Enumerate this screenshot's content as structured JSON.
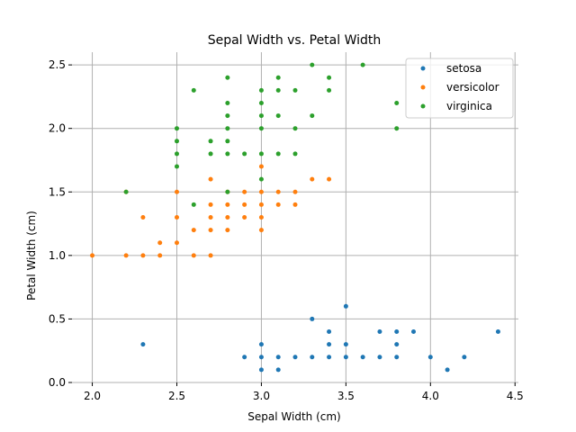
{
  "chart_data": {
    "type": "scatter",
    "title": "Sepal Width vs. Petal Width",
    "xlabel": "Sepal Width (cm)",
    "ylabel": "Petal Width (cm)",
    "xlim": [
      1.88,
      4.52
    ],
    "ylim": [
      0.0,
      2.6
    ],
    "xticks": [
      "2.0",
      "2.5",
      "3.0",
      "3.5",
      "4.0",
      "4.5"
    ],
    "yticks": [
      "0.0",
      "0.5",
      "1.0",
      "1.5",
      "2.0",
      "2.5"
    ],
    "grid": true,
    "legend_position": "top-right",
    "series": [
      {
        "name": "setosa",
        "color": "#1f77b4",
        "points": [
          [
            2.3,
            0.3
          ],
          [
            2.9,
            0.2
          ],
          [
            3.0,
            0.1
          ],
          [
            3.0,
            0.2
          ],
          [
            3.0,
            0.3
          ],
          [
            3.1,
            0.1
          ],
          [
            3.1,
            0.2
          ],
          [
            3.2,
            0.2
          ],
          [
            3.3,
            0.2
          ],
          [
            3.3,
            0.5
          ],
          [
            3.4,
            0.2
          ],
          [
            3.4,
            0.3
          ],
          [
            3.4,
            0.4
          ],
          [
            3.5,
            0.2
          ],
          [
            3.5,
            0.3
          ],
          [
            3.5,
            0.6
          ],
          [
            3.6,
            0.2
          ],
          [
            3.7,
            0.2
          ],
          [
            3.7,
            0.4
          ],
          [
            3.8,
            0.2
          ],
          [
            3.8,
            0.3
          ],
          [
            3.8,
            0.4
          ],
          [
            3.9,
            0.4
          ],
          [
            4.0,
            0.2
          ],
          [
            4.1,
            0.1
          ],
          [
            4.2,
            0.2
          ],
          [
            4.4,
            0.4
          ]
        ]
      },
      {
        "name": "versicolor",
        "color": "#ff7f0e",
        "points": [
          [
            2.0,
            1.0
          ],
          [
            2.2,
            1.0
          ],
          [
            2.2,
            1.5
          ],
          [
            2.3,
            1.0
          ],
          [
            2.3,
            1.3
          ],
          [
            2.4,
            1.0
          ],
          [
            2.4,
            1.1
          ],
          [
            2.5,
            1.1
          ],
          [
            2.5,
            1.3
          ],
          [
            2.5,
            1.5
          ],
          [
            2.6,
            1.0
          ],
          [
            2.6,
            1.2
          ],
          [
            2.7,
            1.0
          ],
          [
            2.7,
            1.2
          ],
          [
            2.7,
            1.3
          ],
          [
            2.7,
            1.4
          ],
          [
            2.7,
            1.6
          ],
          [
            2.8,
            1.2
          ],
          [
            2.8,
            1.3
          ],
          [
            2.8,
            1.4
          ],
          [
            2.8,
            1.5
          ],
          [
            2.9,
            1.3
          ],
          [
            2.9,
            1.4
          ],
          [
            2.9,
            1.5
          ],
          [
            3.0,
            1.2
          ],
          [
            3.0,
            1.3
          ],
          [
            3.0,
            1.4
          ],
          [
            3.0,
            1.5
          ],
          [
            3.0,
            1.7
          ],
          [
            3.1,
            1.4
          ],
          [
            3.1,
            1.5
          ],
          [
            3.2,
            1.4
          ],
          [
            3.2,
            1.5
          ],
          [
            3.3,
            1.6
          ],
          [
            3.4,
            1.6
          ]
        ]
      },
      {
        "name": "virginica",
        "color": "#2ca02c",
        "points": [
          [
            2.2,
            1.5
          ],
          [
            2.5,
            1.7
          ],
          [
            2.5,
            1.8
          ],
          [
            2.5,
            1.9
          ],
          [
            2.5,
            2.0
          ],
          [
            2.6,
            1.4
          ],
          [
            2.6,
            2.3
          ],
          [
            2.7,
            1.8
          ],
          [
            2.7,
            1.9
          ],
          [
            2.8,
            1.5
          ],
          [
            2.8,
            1.8
          ],
          [
            2.8,
            1.9
          ],
          [
            2.8,
            2.0
          ],
          [
            2.8,
            2.1
          ],
          [
            2.8,
            2.2
          ],
          [
            2.8,
            2.4
          ],
          [
            2.9,
            1.8
          ],
          [
            3.0,
            1.6
          ],
          [
            3.0,
            1.8
          ],
          [
            3.0,
            2.0
          ],
          [
            3.0,
            2.1
          ],
          [
            3.0,
            2.2
          ],
          [
            3.0,
            2.3
          ],
          [
            3.1,
            1.8
          ],
          [
            3.1,
            2.1
          ],
          [
            3.1,
            2.3
          ],
          [
            3.1,
            2.4
          ],
          [
            3.2,
            1.8
          ],
          [
            3.2,
            2.0
          ],
          [
            3.2,
            2.3
          ],
          [
            3.3,
            2.1
          ],
          [
            3.3,
            2.5
          ],
          [
            3.4,
            2.3
          ],
          [
            3.4,
            2.4
          ],
          [
            3.6,
            2.5
          ],
          [
            3.8,
            2.0
          ],
          [
            3.8,
            2.2
          ]
        ]
      }
    ]
  }
}
